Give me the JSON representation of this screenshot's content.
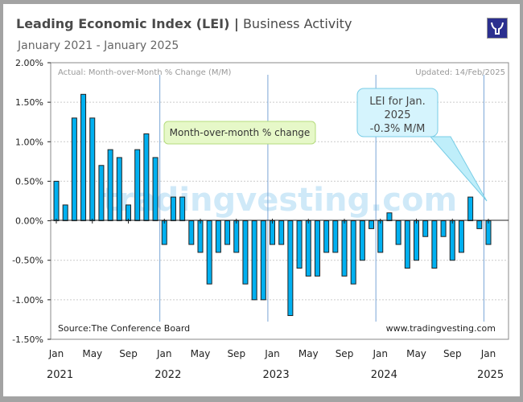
{
  "header": {
    "title_bold": "Leading Economic Index (LEI) |",
    "title_rest": " Business Activity",
    "subtitle": "January 2021 - January 2025",
    "logo": "tradingvesting-bull-logo"
  },
  "chart_data": {
    "type": "bar",
    "title": "Leading Economic Index (LEI) | Business Activity",
    "subtitle": "January 2021 - January 2025",
    "series_label": "Actual: Month-over-Month % Change (M/M)",
    "updated": "Updated: 14/Feb/2025",
    "source": "Source:The Conference Board",
    "site": "www.tradingvesting.com",
    "watermark": "tradingvesting.com",
    "legend_callout": "Month-over-month % change",
    "callout": [
      "LEI for Jan.",
      "2025",
      "-0.3% M/M"
    ],
    "ylim": [
      -1.5,
      2.0
    ],
    "yticks": [
      "2.00%",
      "1.50%",
      "1.00%",
      "0.50%",
      "0.00%",
      "-0.50%",
      "-1.00%",
      "-1.50%"
    ],
    "ytick_values": [
      2.0,
      1.5,
      1.0,
      0.5,
      0.0,
      -0.5,
      -1.0,
      -1.5
    ],
    "xtick_labels": [
      "Jan",
      "May",
      "Sep",
      "Jan",
      "May",
      "Sep",
      "Jan",
      "May",
      "Sep",
      "Jan",
      "May",
      "Sep",
      "Jan"
    ],
    "year_labels": [
      "2021",
      "2022",
      "2023",
      "2024",
      "2025"
    ],
    "grid": true,
    "bar_color": "#00b0f0",
    "categories": [
      "2021-01",
      "2021-02",
      "2021-03",
      "2021-04",
      "2021-05",
      "2021-06",
      "2021-07",
      "2021-08",
      "2021-09",
      "2021-10",
      "2021-11",
      "2021-12",
      "2022-01",
      "2022-02",
      "2022-03",
      "2022-04",
      "2022-05",
      "2022-06",
      "2022-07",
      "2022-08",
      "2022-09",
      "2022-10",
      "2022-11",
      "2022-12",
      "2023-01",
      "2023-02",
      "2023-03",
      "2023-04",
      "2023-05",
      "2023-06",
      "2023-07",
      "2023-08",
      "2023-09",
      "2023-10",
      "2023-11",
      "2023-12",
      "2024-01",
      "2024-02",
      "2024-03",
      "2024-04",
      "2024-05",
      "2024-06",
      "2024-07",
      "2024-08",
      "2024-09",
      "2024-10",
      "2024-11",
      "2024-12",
      "2025-01"
    ],
    "values": [
      0.5,
      0.2,
      1.3,
      1.6,
      1.3,
      0.7,
      0.9,
      0.8,
      0.2,
      0.9,
      1.1,
      0.8,
      -0.3,
      0.3,
      0.3,
      -0.3,
      -0.4,
      -0.8,
      -0.4,
      -0.3,
      -0.4,
      -0.8,
      -1.0,
      -1.0,
      -0.3,
      -0.3,
      -1.2,
      -0.6,
      -0.7,
      -0.7,
      -0.4,
      -0.4,
      -0.7,
      -0.8,
      -0.5,
      -0.1,
      -0.4,
      0.1,
      -0.3,
      -0.6,
      -0.5,
      -0.2,
      -0.6,
      -0.2,
      -0.5,
      -0.4,
      0.3,
      -0.1,
      -0.3
    ]
  }
}
